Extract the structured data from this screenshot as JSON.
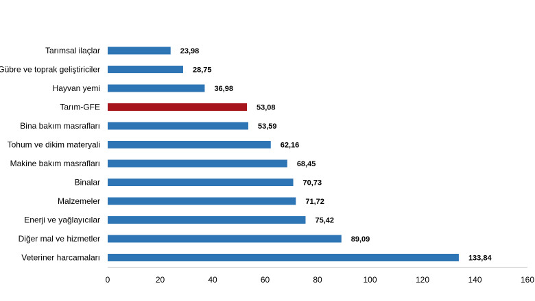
{
  "chart_data": {
    "type": "bar",
    "orientation": "horizontal",
    "categories": [
      "Tarımsal ilaçlar",
      "Gübre ve toprak geliştiriciler",
      "Hayvan yemi",
      "Tarım-GFE",
      "Bina bakım masrafları",
      "Tohum ve dikim materyali",
      "Makine bakım masrafları",
      "Binalar",
      "Malzemeler",
      "Enerji  ve yağlayıcılar",
      "Diğer mal ve hizmetler",
      "Veteriner harcamaları"
    ],
    "values": [
      23.98,
      28.75,
      36.98,
      53.08,
      53.59,
      62.16,
      68.45,
      70.73,
      71.72,
      75.42,
      89.09,
      133.84
    ],
    "value_labels": [
      "23,98",
      "28,75",
      "36,98",
      "53,08",
      "53,59",
      "62,16",
      "68,45",
      "70,73",
      "71,72",
      "75,42",
      "89,09",
      "133,84"
    ],
    "highlight_index": 3,
    "xlim": [
      0,
      160
    ],
    "xticks": [
      0,
      20,
      40,
      60,
      80,
      100,
      120,
      140,
      160
    ],
    "title": "",
    "xlabel": "",
    "ylabel": "",
    "grid": false,
    "legend": "none",
    "colors": {
      "bar": "#2e75b6",
      "highlight": "#a6141c",
      "axis": "#bfbfbf",
      "text": "#000000"
    }
  }
}
